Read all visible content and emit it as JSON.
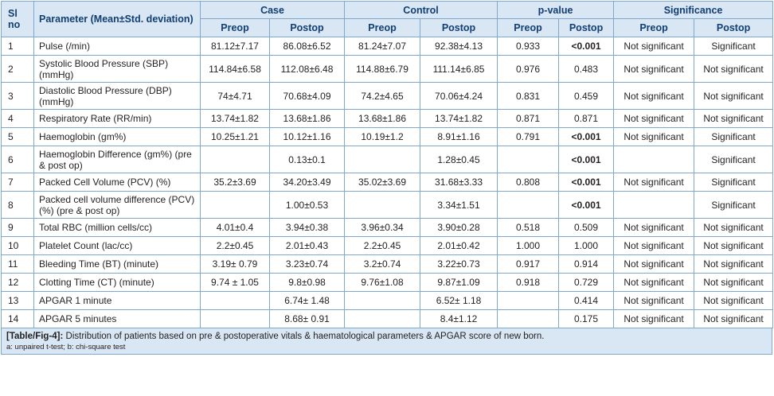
{
  "table": {
    "headers": {
      "sl": "Sl no",
      "parameter": "Parameter (Mean±Std. deviation)",
      "groups": [
        "Case",
        "Control",
        "p-value",
        "Significance"
      ],
      "sub": [
        "Preop",
        "Postop",
        "Preop",
        "Postop",
        "Preop",
        "Postop",
        "Preop",
        "Postop"
      ]
    },
    "rows": [
      {
        "sl": "1",
        "param": "Pulse (/min)",
        "case_pre": "81.12±7.17",
        "case_post": "86.08±6.52",
        "ctrl_pre": "81.24±7.07",
        "ctrl_post": "92.38±4.13",
        "p_pre": "0.933",
        "p_post": "<0.001",
        "sig_pre": "Not significant",
        "sig_post": "Significant"
      },
      {
        "sl": "2",
        "param": "Systolic Blood Pressure (SBP) (mmHg)",
        "case_pre": "114.84±6.58",
        "case_post": "112.08±6.48",
        "ctrl_pre": "114.88±6.79",
        "ctrl_post": "111.14±6.85",
        "p_pre": "0.976",
        "p_post": "0.483",
        "sig_pre": "Not significant",
        "sig_post": "Not significant"
      },
      {
        "sl": "3",
        "param": "Diastolic Blood Pressure (DBP) (mmHg)",
        "case_pre": "74±4.71",
        "case_post": "70.68±4.09",
        "ctrl_pre": "74.2±4.65",
        "ctrl_post": "70.06±4.24",
        "p_pre": "0.831",
        "p_post": "0.459",
        "sig_pre": "Not significant",
        "sig_post": "Not significant"
      },
      {
        "sl": "4",
        "param": "Respiratory Rate (RR/min)",
        "case_pre": "13.74±1.82",
        "case_post": "13.68±1.86",
        "ctrl_pre": "13.68±1.86",
        "ctrl_post": "13.74±1.82",
        "p_pre": "0.871",
        "p_post": "0.871",
        "sig_pre": "Not significant",
        "sig_post": "Not significant"
      },
      {
        "sl": "5",
        "param": "Haemoglobin (gm%)",
        "case_pre": "10.25±1.21",
        "case_post": "10.12±1.16",
        "ctrl_pre": "10.19±1.2",
        "ctrl_post": "8.91±1.16",
        "p_pre": "0.791",
        "p_post": "<0.001",
        "sig_pre": "Not significant",
        "sig_post": "Significant"
      },
      {
        "sl": "6",
        "param": "Haemoglobin Difference (gm%) (pre & post op)",
        "case_pre": "",
        "case_post": "0.13±0.1",
        "ctrl_pre": "",
        "ctrl_post": "1.28±0.45",
        "p_pre": "",
        "p_post": "<0.001",
        "sig_pre": "",
        "sig_post": "Significant"
      },
      {
        "sl": "7",
        "param": "Packed Cell Volume (PCV) (%)",
        "case_pre": "35.2±3.69",
        "case_post": "34.20±3.49",
        "ctrl_pre": "35.02±3.69",
        "ctrl_post": "31.68±3.33",
        "p_pre": "0.808",
        "p_post": "<0.001",
        "sig_pre": "Not significant",
        "sig_post": "Significant"
      },
      {
        "sl": "8",
        "param": "Packed cell volume difference (PCV) (%) (pre & post op)",
        "case_pre": "",
        "case_post": "1.00±0.53",
        "ctrl_pre": "",
        "ctrl_post": "3.34±1.51",
        "p_pre": "",
        "p_post": "<0.001",
        "sig_pre": "",
        "sig_post": "Significant"
      },
      {
        "sl": "9",
        "param": "Total RBC (million cells/cc)",
        "case_pre": "4.01±0.4",
        "case_post": "3.94±0.38",
        "ctrl_pre": "3.96±0.34",
        "ctrl_post": "3.90±0.28",
        "p_pre": "0.518",
        "p_post": "0.509",
        "sig_pre": "Not significant",
        "sig_post": "Not significant"
      },
      {
        "sl": "10",
        "param": "Platelet Count (lac/cc)",
        "case_pre": "2.2±0.45",
        "case_post": "2.01±0.43",
        "ctrl_pre": "2.2±0.45",
        "ctrl_post": "2.01±0.42",
        "p_pre": "1.000",
        "p_post": "1.000",
        "sig_pre": "Not significant",
        "sig_post": "Not significant"
      },
      {
        "sl": "11",
        "param": "Bleeding Time (BT) (minute)",
        "case_pre": "3.19± 0.79",
        "case_post": "3.23±0.74",
        "ctrl_pre": "3.2±0.74",
        "ctrl_post": "3.22±0.73",
        "p_pre": "0.917",
        "p_post": "0.914",
        "sig_pre": "Not significant",
        "sig_post": "Not significant"
      },
      {
        "sl": "12",
        "param": "Clotting Time (CT) (minute)",
        "case_pre": "9.74 ± 1.05",
        "case_post": "9.8±0.98",
        "ctrl_pre": "9.76±1.08",
        "ctrl_post": "9.87±1.09",
        "p_pre": "0.918",
        "p_post": "0.729",
        "sig_pre": "Not significant",
        "sig_post": "Not significant"
      },
      {
        "sl": "13",
        "param": "APGAR 1 minute",
        "case_pre": "",
        "case_post": "6.74± 1.48",
        "ctrl_pre": "",
        "ctrl_post": "6.52± 1.18",
        "p_pre": "",
        "p_post": "0.414",
        "sig_pre": "Not significant",
        "sig_post": "Not significant"
      },
      {
        "sl": "14",
        "param": "APGAR 5 minutes",
        "case_pre": "",
        "case_post": "8.68± 0.91",
        "ctrl_pre": "",
        "ctrl_post": "8.4±1.12",
        "p_pre": "",
        "p_post": "0.175",
        "sig_pre": "Not significant",
        "sig_post": "Not significant"
      }
    ],
    "bold_values": [
      "<0.001"
    ],
    "row_heights_class": [
      "r1",
      "r2",
      "r2",
      "r1",
      "r1",
      "r2",
      "r1",
      "r2",
      "r1",
      "r1",
      "r1",
      "r1",
      "r1",
      "r1"
    ]
  },
  "caption": {
    "label": "[Table/Fig-4]:",
    "text": "Distribution of patients based on pre & postoperative vitals & haematological parameters & APGAR score of new born.",
    "notes": "a: unpaired t-test; b: chi-square test"
  },
  "colors": {
    "header_bg": "#d9e6f4",
    "header_text": "#123f73",
    "border": "#7fa8cf"
  }
}
